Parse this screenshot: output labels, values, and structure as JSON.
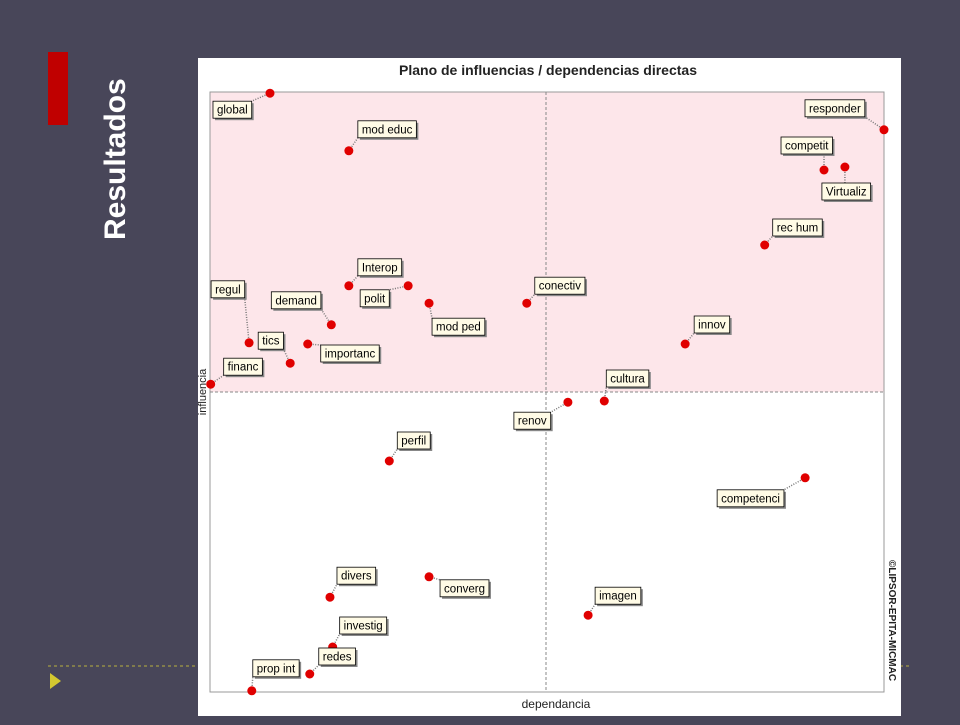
{
  "slide_title": "Resultados",
  "chart_data": {
    "type": "scatter",
    "title": "Plano de influencias / dependencias directas",
    "x_label": "dependancia",
    "y_label": "influencia",
    "credit": "©LIPSOR-EPITA-MICMAC",
    "xlim": [
      0,
      100
    ],
    "ylim": [
      0,
      100
    ],
    "color": "#e00000",
    "labels": [
      "global",
      "mod educ",
      "responder",
      "competit",
      "Virtualiz",
      "rec hum",
      "regul",
      "demand",
      "Interop",
      "polit",
      "mod ped",
      "conectiv",
      "innov",
      "tics",
      "importanc",
      "financ",
      "cultura",
      "renov",
      "perfil",
      "competenci",
      "divers",
      "converg",
      "imagen",
      "investig",
      "redes",
      "prop int"
    ],
    "x": [
      8.9,
      20.6,
      100,
      91.1,
      94.2,
      82.3,
      5.8,
      18,
      20.6,
      29.4,
      32.5,
      47,
      70.5,
      11.9,
      14.5,
      0.1,
      58.5,
      53.1,
      26.6,
      88.3,
      17.8,
      32.5,
      56.1,
      18.2,
      14.8,
      6.2
    ],
    "y": [
      99.8,
      90.2,
      93.7,
      87,
      87.5,
      74.5,
      58.2,
      61.2,
      67.7,
      67.7,
      64.8,
      64.8,
      58,
      54.8,
      58,
      51.3,
      48.5,
      48.3,
      38.5,
      35.7,
      15.8,
      19.2,
      12.8,
      7.5,
      3,
      0.2
    ]
  }
}
